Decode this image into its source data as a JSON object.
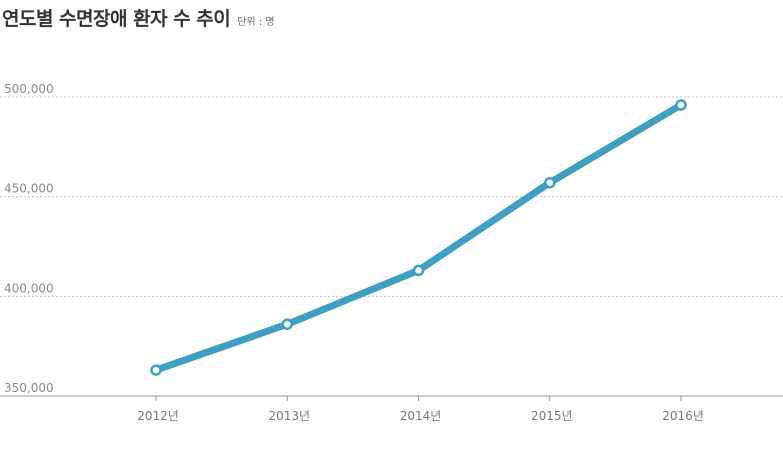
{
  "header": {
    "title": "연도별 수면장애 환자 수 추이",
    "unit": "단위 : 명"
  },
  "colors": {
    "line": "#3e9fc3",
    "grid": "#bfbfbf",
    "axis": "#9a9a9a",
    "marker_fill": "#ffffff"
  },
  "chart_data": {
    "type": "line",
    "title": "연도별 수면장애 환자 수 추이",
    "unit": "단위 : 명",
    "categories": [
      "2012년",
      "2013년",
      "2014년",
      "2015년",
      "2016년"
    ],
    "series": [
      {
        "values": [
          363000,
          386000,
          413000,
          457000,
          496000
        ]
      }
    ],
    "ylim": [
      350000,
      500000
    ],
    "yticks": [
      350000,
      400000,
      450000,
      500000
    ],
    "ytick_labels": [
      "350,000",
      "400,000",
      "450,000",
      "500,000"
    ],
    "grid": true,
    "legend": "none"
  }
}
